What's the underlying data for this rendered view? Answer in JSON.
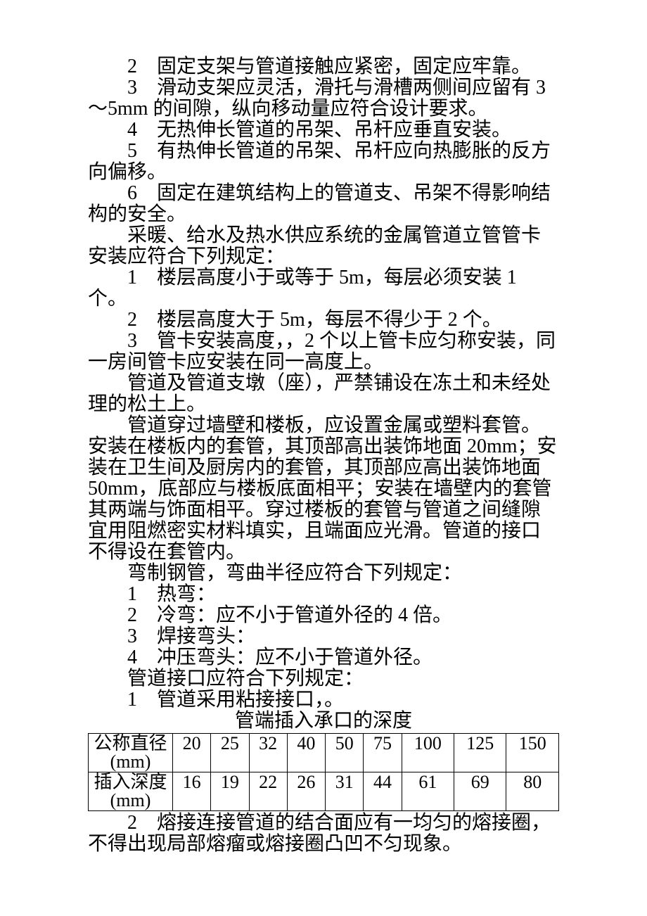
{
  "section1": {
    "items": [
      {
        "num": "2",
        "text": "固定支架与管道接触应紧密，固定应牢靠。"
      },
      {
        "num": "3",
        "text": "滑动支架应灵活，滑托与滑槽两侧间应留有 3～5mm 的间隙，纵向移动量应符合设计要求。"
      },
      {
        "num": "4",
        "text": "无热伸长管道的吊架、吊杆应垂直安装。"
      },
      {
        "num": "5",
        "text": "有热伸长管道的吊架、吊杆应向热膨胀的反方向偏移。"
      },
      {
        "num": "6",
        "text": "固定在建筑结构上的管道支、吊架不得影响结构的安全。"
      }
    ]
  },
  "section2": {
    "intro": "采暖、给水及热水供应系统的金属管道立管管卡安装应符合下列规定：",
    "items": [
      {
        "num": "1",
        "text": "楼层高度小于或等于 5m，每层必须安装 1 个。"
      },
      {
        "num": "2",
        "text": "楼层高度大于 5m，每层不得少于 2 个。"
      },
      {
        "num": "3",
        "text": "管卡安装高度，，2 个以上管卡应匀称安装，同一房间管卡应安装在同一高度上。"
      }
    ]
  },
  "para3": "管道及管道支墩（座），严禁铺设在冻土和未经处理的松土上。",
  "para4": "管道穿过墙壁和楼板，应设置金属或塑料套管。安装在楼板内的套管，其顶部高出装饰地面 20mm；安装在卫生间及厨房内的套管，其顶部应高出装饰地面 50mm，底部应与楼板底面相平；安装在墙壁内的套管其两端与饰面相平。穿过楼板的套管与管道之间缝隙宜用阻燃密实材料填实，且端面应光滑。管道的接口不得设在套管内。",
  "section5": {
    "intro": "弯制钢管，弯曲半径应符合下列规定：",
    "items": [
      {
        "num": "1",
        "text": "热弯："
      },
      {
        "num": "2",
        "text": "冷弯：应不小于管道外径的 4 倍。"
      },
      {
        "num": "3",
        "text": "焊接弯头："
      },
      {
        "num": "4",
        "text": "冲压弯头：应不小于管道外径。"
      }
    ]
  },
  "section6": {
    "intro": "管道接口应符合下列规定：",
    "item1": {
      "num": "1",
      "text": "管道采用粘接接口，。"
    }
  },
  "table": {
    "title": "管端插入承口的深度",
    "row1_label": "公称直径(mm)",
    "row2_label": "插入深度(mm)",
    "columns": [
      "20",
      "25",
      "32",
      "40",
      "50",
      "75",
      "100",
      "125",
      "150"
    ],
    "values": [
      "16",
      "19",
      "22",
      "26",
      "31",
      "44",
      "61",
      "69",
      "80"
    ],
    "font_size": 26,
    "border_color": "#000000",
    "background": "#ffffff"
  },
  "section6_item2": {
    "num": "2",
    "text": "熔接连接管道的结合面应有一均匀的熔接圈，不得出现局部熔瘤或熔接圈凸凹不匀现象。"
  }
}
